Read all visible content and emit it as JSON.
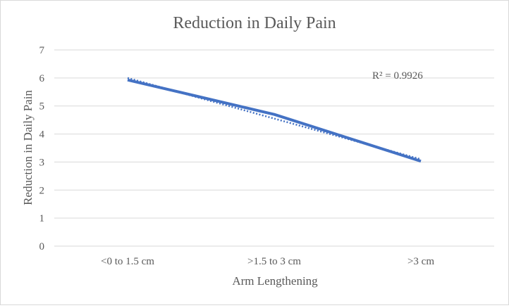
{
  "chart_data": {
    "type": "line",
    "title": "Reduction in Daily Pain",
    "xlabel": "Arm Lengthening",
    "ylabel": "Reduction in Daily Pain",
    "categories": [
      "<0 to 1.5 cm",
      ">1.5 to 3 cm",
      ">3 cm"
    ],
    "series": [
      {
        "values": [
          5.93,
          4.7,
          3.03
        ],
        "color": "#4472c4"
      }
    ],
    "trendline": {
      "type": "linear",
      "values": [
        6.0,
        4.55,
        3.1
      ],
      "style": "dotted",
      "color": "#4472c4",
      "label": "R² = 0.9926"
    },
    "ylim": [
      0,
      7
    ],
    "yticks": [
      "0",
      "1",
      "2",
      "3",
      "4",
      "5",
      "6",
      "7"
    ],
    "grid": true,
    "legend": "none",
    "colors": {
      "gridline": "#d9d9d9",
      "text": "#595959",
      "border": "#d9d9d9"
    }
  }
}
